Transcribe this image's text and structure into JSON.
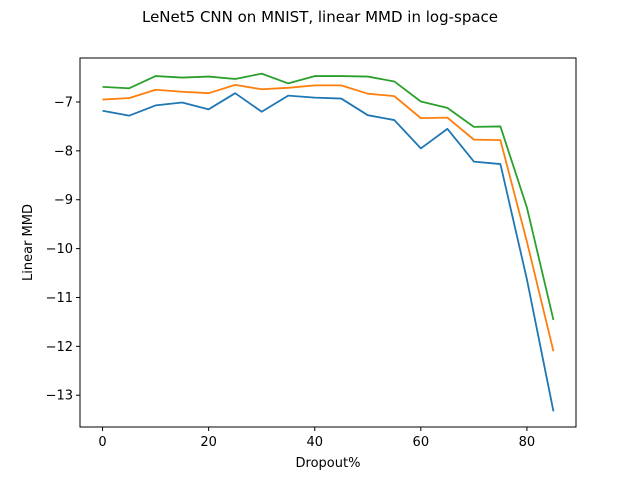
{
  "chart_data": {
    "type": "line",
    "title": "LeNet5 CNN on MNIST, linear MMD in log-space",
    "xlabel": "Dropout%",
    "ylabel": "Linear MMD",
    "xlim": [
      -4.25,
      89.25
    ],
    "ylim": [
      -13.65,
      -6.1
    ],
    "xticks": [
      0,
      20,
      40,
      60,
      80
    ],
    "yticks": [
      -13,
      -12,
      -11,
      -10,
      -9,
      -8,
      -7
    ],
    "grid": false,
    "x": [
      0,
      5,
      10,
      15,
      20,
      25,
      30,
      35,
      40,
      45,
      50,
      55,
      60,
      65,
      70,
      75,
      80,
      85
    ],
    "series": [
      {
        "color": "#1f77b4",
        "values": [
          -7.18,
          -7.28,
          -7.07,
          -7.01,
          -7.15,
          -6.82,
          -7.2,
          -6.87,
          -6.91,
          -6.93,
          -7.27,
          -7.37,
          -7.95,
          -7.55,
          -8.22,
          -8.27,
          -10.63,
          -13.33
        ]
      },
      {
        "color": "#ff7f0e",
        "values": [
          -6.95,
          -6.92,
          -6.75,
          -6.79,
          -6.82,
          -6.65,
          -6.74,
          -6.71,
          -6.66,
          -6.66,
          -6.83,
          -6.88,
          -7.33,
          -7.32,
          -7.77,
          -7.78,
          -9.86,
          -12.1
        ]
      },
      {
        "color": "#2ca02c",
        "values": [
          -6.69,
          -6.72,
          -6.47,
          -6.5,
          -6.48,
          -6.53,
          -6.42,
          -6.62,
          -6.47,
          -6.47,
          -6.48,
          -6.58,
          -6.99,
          -7.12,
          -7.51,
          -7.5,
          -9.16,
          -11.46
        ]
      }
    ]
  }
}
